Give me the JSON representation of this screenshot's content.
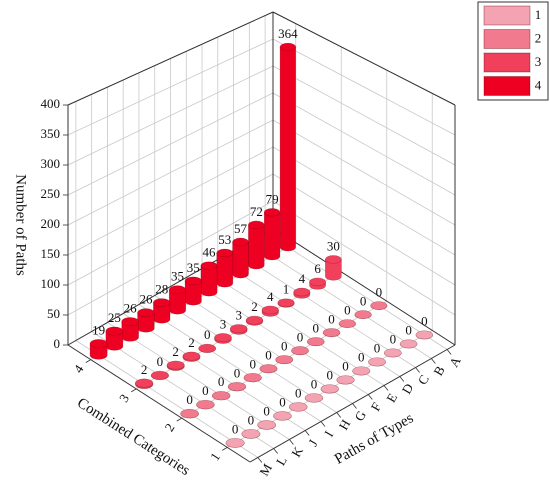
{
  "chart_data": {
    "type": "bar3d",
    "x_label": "Paths of Types",
    "y_label": "Number of Paths",
    "series_axis_label": "Combined Categories",
    "categories": [
      "A",
      "B",
      "C",
      "D",
      "E",
      "F",
      "G",
      "H",
      "I",
      "J",
      "K",
      "L",
      "M"
    ],
    "series": [
      {
        "name": "1",
        "color": "#f4a3b2",
        "values": [
          0,
          0,
          0,
          0,
          0,
          0,
          0,
          0,
          0,
          0,
          0,
          0,
          0
        ]
      },
      {
        "name": "2",
        "color": "#f27a8e",
        "values": [
          0,
          0,
          0,
          0,
          0,
          0,
          0,
          0,
          0,
          0,
          0,
          0,
          0
        ]
      },
      {
        "name": "3",
        "color": "#f0405c",
        "values": [
          30,
          6,
          4,
          1,
          4,
          2,
          3,
          3,
          0,
          2,
          2,
          0,
          2
        ]
      },
      {
        "name": "4",
        "color": "#ee0022",
        "values": [
          364,
          79,
          72,
          57,
          53,
          46,
          35,
          35,
          28,
          26,
          26,
          25,
          19
        ]
      }
    ],
    "ylim": [
      0,
      400
    ],
    "yticks": [
      0,
      50,
      100,
      150,
      200,
      250,
      300,
      350,
      400
    ],
    "grid": true,
    "legend": "top-right"
  }
}
